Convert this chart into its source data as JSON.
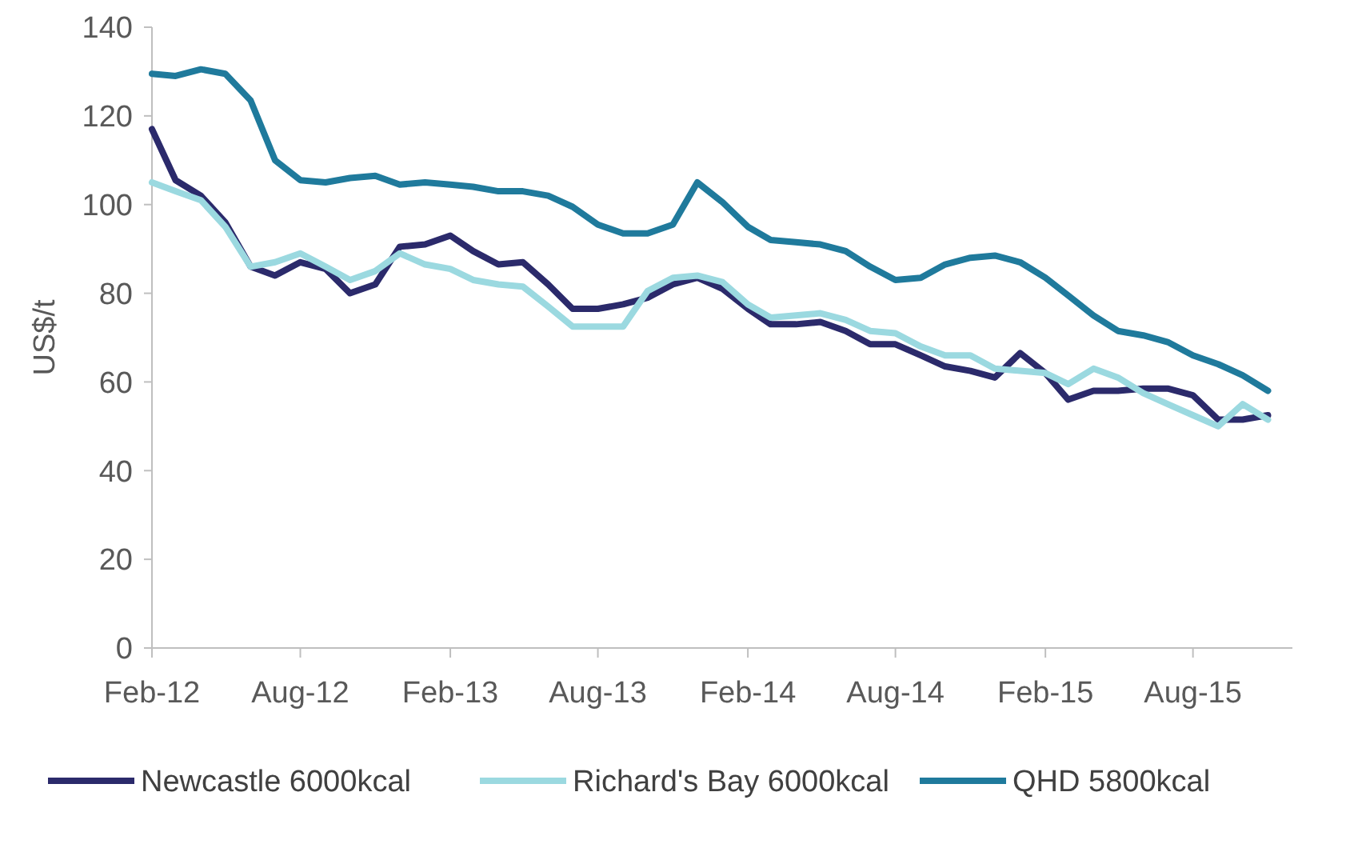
{
  "chart_data": {
    "type": "line",
    "ylabel": "US$/t",
    "x": [
      "2012-02",
      "2012-03",
      "2012-04",
      "2012-05",
      "2012-06",
      "2012-07",
      "2012-08",
      "2012-09",
      "2012-10",
      "2012-11",
      "2012-12",
      "2013-01",
      "2013-02",
      "2013-03",
      "2013-04",
      "2013-05",
      "2013-06",
      "2013-07",
      "2013-08",
      "2013-09",
      "2013-10",
      "2013-11",
      "2013-12",
      "2014-01",
      "2014-02",
      "2014-03",
      "2014-04",
      "2014-05",
      "2014-06",
      "2014-07",
      "2014-08",
      "2014-09",
      "2014-10",
      "2014-11",
      "2014-12",
      "2015-01",
      "2015-02",
      "2015-03",
      "2015-04",
      "2015-05",
      "2015-06",
      "2015-07",
      "2015-08",
      "2015-09",
      "2015-10",
      "2015-11"
    ],
    "series": [
      {
        "name": "Newcastle 6000kcal",
        "color": "#2b2a6b",
        "values": [
          117,
          105.5,
          102,
          96,
          86,
          84,
          87,
          85.5,
          80,
          82,
          90.5,
          91,
          93,
          89.5,
          86.5,
          87,
          82,
          76.5,
          76.5,
          77.5,
          79,
          82,
          83.5,
          81,
          76.5,
          73,
          73,
          73.5,
          71.5,
          68.5,
          68.5,
          66,
          63.5,
          62.5,
          61,
          66.5,
          62,
          56,
          58,
          58,
          58.5,
          58.5,
          57,
          51.5,
          51.5,
          52.5
        ]
      },
      {
        "name": "Richard's Bay 6000kcal",
        "color": "#9bd9e0",
        "values": [
          105,
          103,
          101,
          95,
          86,
          87,
          89,
          86,
          83,
          85,
          89,
          86.5,
          85.5,
          83,
          82,
          81.5,
          77,
          72.5,
          72.5,
          72.5,
          80.5,
          83.5,
          84,
          82.5,
          77.5,
          74.5,
          75,
          75.5,
          74,
          71.5,
          71,
          68,
          66,
          66,
          63,
          62.5,
          62,
          59.5,
          63,
          61,
          57.5,
          55,
          52.5,
          50,
          55,
          51.5
        ]
      },
      {
        "name": "QHD 5800kcal",
        "color": "#1f7a9c",
        "values": [
          129.5,
          129,
          130.5,
          129.5,
          123.5,
          110,
          105.5,
          105,
          106,
          106.5,
          104.5,
          105,
          104.5,
          104,
          103,
          103,
          102,
          99.5,
          95.5,
          93.5,
          93.5,
          95.5,
          105,
          100.5,
          95,
          92,
          91.5,
          91,
          89.5,
          86,
          83,
          83.5,
          86.5,
          88,
          88.5,
          87,
          83.5,
          79.5,
          75,
          71.5,
          70.5,
          69,
          66,
          64,
          61.5,
          58
        ]
      }
    ],
    "xlim": [
      "2012-02",
      "2015-12"
    ],
    "xticks": [
      {
        "value": "2012-02",
        "label": "Feb-12"
      },
      {
        "value": "2012-08",
        "label": "Aug-12"
      },
      {
        "value": "2013-02",
        "label": "Feb-13"
      },
      {
        "value": "2013-08",
        "label": "Aug-13"
      },
      {
        "value": "2014-02",
        "label": "Feb-14"
      },
      {
        "value": "2014-08",
        "label": "Aug-14"
      },
      {
        "value": "2015-02",
        "label": "Feb-15"
      },
      {
        "value": "2015-08",
        "label": "Aug-15"
      }
    ],
    "ylim": [
      0,
      140
    ],
    "yticks": [
      0,
      20,
      40,
      60,
      80,
      100,
      120,
      140
    ],
    "legend": "bottom",
    "line_style": "solid"
  }
}
